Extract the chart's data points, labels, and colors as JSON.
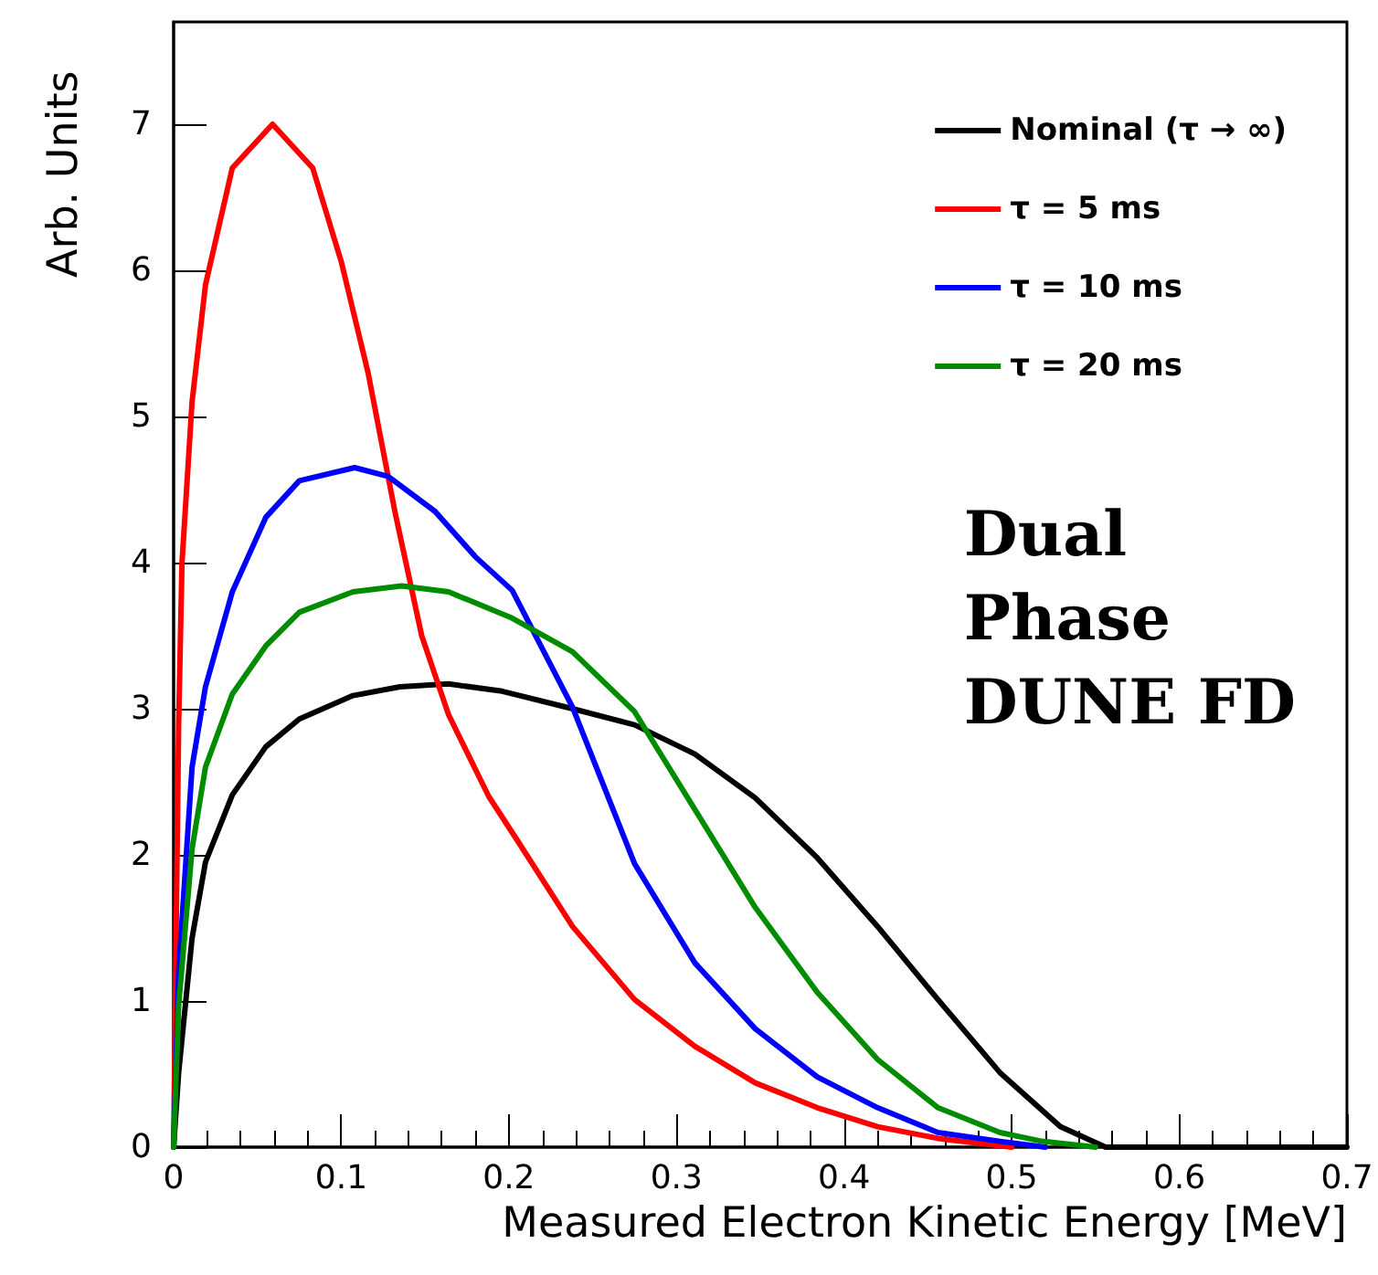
{
  "chart_data": {
    "type": "line",
    "xlabel": "Measured Electron Kinetic Energy [MeV]",
    "ylabel": "Arb. Units",
    "xlim": [
      0,
      0.7
    ],
    "xticks": [
      0,
      0.1,
      0.2,
      0.3,
      0.4,
      0.5,
      0.6,
      0.7
    ],
    "ylim": [
      0,
      7.7
    ],
    "yticks": [
      0,
      1,
      2,
      3,
      4,
      5,
      6,
      7
    ],
    "grid": false,
    "legend": "top right",
    "marker": "none",
    "line_style": "solid",
    "annotations": [
      "Dual\nPhase\nDUNE FD"
    ],
    "series": [
      {
        "name": "Nominal (τ → ∞)",
        "color": "#000000",
        "x": [
          0,
          0.003,
          0.011,
          0.019,
          0.035,
          0.055,
          0.075,
          0.107,
          0.135,
          0.164,
          0.196,
          0.238,
          0.275,
          0.311,
          0.347,
          0.384,
          0.42,
          0.456,
          0.493,
          0.529,
          0.556,
          0.7
        ],
        "values": [
          0,
          0.51,
          1.43,
          1.95,
          2.41,
          2.74,
          2.93,
          3.09,
          3.15,
          3.17,
          3.12,
          3.0,
          2.89,
          2.69,
          2.39,
          1.98,
          1.51,
          1.01,
          0.51,
          0.14,
          0,
          0
        ]
      },
      {
        "name": "τ = 5 ms",
        "color": "#ff0000",
        "x": [
          0,
          0.003,
          0.005,
          0.011,
          0.019,
          0.035,
          0.059,
          0.083,
          0.1,
          0.116,
          0.132,
          0.148,
          0.164,
          0.188,
          0.205,
          0.238,
          0.275,
          0.311,
          0.347,
          0.384,
          0.42,
          0.456,
          0.5
        ],
        "values": [
          0,
          2.9,
          4.0,
          5.1,
          5.9,
          6.7,
          7.0,
          6.7,
          6.06,
          5.3,
          4.35,
          3.5,
          2.96,
          2.4,
          2.1,
          1.51,
          1.01,
          0.69,
          0.44,
          0.27,
          0.14,
          0.06,
          0
        ]
      },
      {
        "name": "τ = 10 ms",
        "color": "#0000ff",
        "x": [
          0,
          0.003,
          0.011,
          0.019,
          0.035,
          0.055,
          0.075,
          0.108,
          0.128,
          0.156,
          0.18,
          0.202,
          0.238,
          0.275,
          0.311,
          0.347,
          0.384,
          0.42,
          0.456,
          0.493,
          0.52
        ],
        "values": [
          0,
          1.2,
          2.6,
          3.15,
          3.8,
          4.31,
          4.56,
          4.65,
          4.59,
          4.35,
          4.04,
          3.81,
          3.01,
          1.94,
          1.26,
          0.81,
          0.48,
          0.27,
          0.1,
          0.04,
          0
        ]
      },
      {
        "name": "τ = 20 ms",
        "color": "#008c00",
        "x": [
          0,
          0.003,
          0.011,
          0.019,
          0.035,
          0.055,
          0.075,
          0.107,
          0.136,
          0.164,
          0.202,
          0.238,
          0.275,
          0.311,
          0.347,
          0.384,
          0.42,
          0.456,
          0.493,
          0.518,
          0.55
        ],
        "values": [
          0,
          0.97,
          2.04,
          2.6,
          3.1,
          3.43,
          3.66,
          3.8,
          3.84,
          3.8,
          3.62,
          3.39,
          2.98,
          2.31,
          1.64,
          1.06,
          0.6,
          0.27,
          0.1,
          0.04,
          0
        ]
      }
    ]
  }
}
